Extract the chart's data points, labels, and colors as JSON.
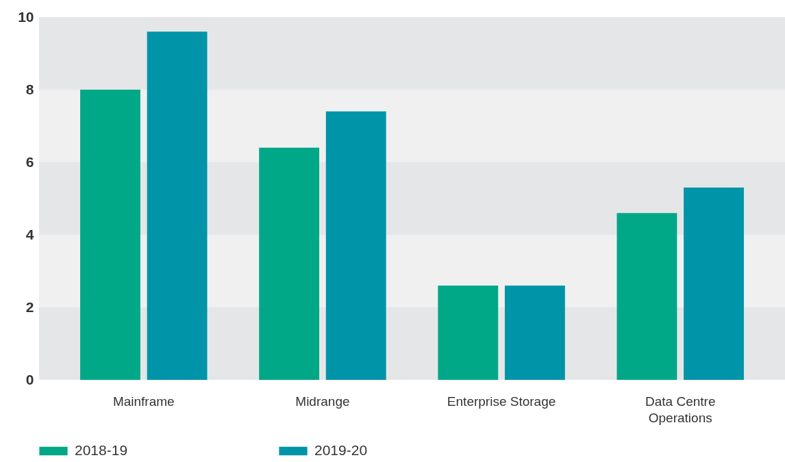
{
  "chart_data": {
    "type": "bar",
    "categories": [
      "Mainframe",
      "Midrange",
      "Enterprise Storage",
      "Data Centre\nOperations"
    ],
    "series": [
      {
        "name": "2018-19",
        "color": "#00a887",
        "values": [
          8.0,
          6.4,
          2.6,
          4.6
        ]
      },
      {
        "name": "2019-20",
        "color": "#0094a8",
        "values": [
          9.6,
          7.4,
          2.6,
          5.3
        ]
      }
    ],
    "ylim": [
      0,
      10
    ],
    "yticks": [
      0,
      2,
      4,
      6,
      8,
      10
    ],
    "bands": [
      {
        "axis": "y",
        "from": 0,
        "to": 2,
        "color": "#e5e6e8"
      },
      {
        "axis": "y",
        "from": 2,
        "to": 4,
        "color": "#f0f0f0"
      },
      {
        "axis": "y",
        "from": 4,
        "to": 6,
        "color": "#e5e6e8"
      },
      {
        "axis": "y",
        "from": 6,
        "to": 8,
        "color": "#f0f0f0"
      },
      {
        "axis": "y",
        "from": 8,
        "to": 10,
        "color": "#e5e6e8"
      }
    ],
    "grid": false,
    "legend": "bottom"
  }
}
